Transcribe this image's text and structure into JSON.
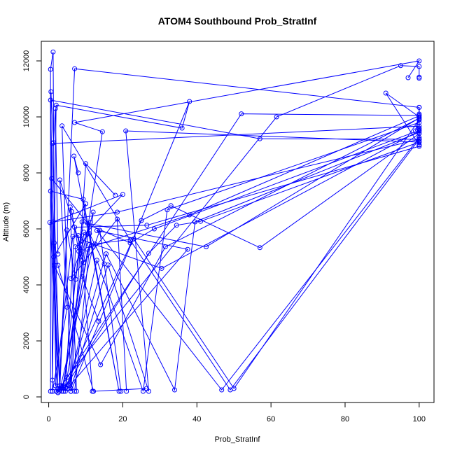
{
  "chart_data": {
    "type": "scatter",
    "title": "ATOM4 Southbound Prob_StratInf",
    "xlabel": "Prob_StratInf",
    "ylabel": "Altitude (m)",
    "xlim": [
      -2,
      104
    ],
    "ylim": [
      -200,
      12700
    ],
    "x_ticks": [
      0,
      20,
      40,
      60,
      80,
      100
    ],
    "y_ticks": [
      0,
      2000,
      4000,
      6000,
      8000,
      10000,
      12000
    ],
    "grid": false,
    "legend": "none",
    "color": "#0000ff",
    "series": [
      {
        "x": [
          0.5,
          0.5,
          1.2,
          1.5,
          2.5,
          12.1,
          26.4
        ],
        "y": [
          200,
          11700,
          12320,
          5500,
          4700,
          200,
          300
        ]
      },
      {
        "x": [
          3,
          7,
          100,
          100
        ],
        "y": [
          300,
          11720,
          10340,
          9000
        ]
      },
      {
        "x": [
          1,
          2,
          36,
          38,
          6,
          10,
          18
        ],
        "y": [
          600,
          10420,
          9600,
          10550,
          200,
          8330,
          7200
        ]
      },
      {
        "x": [
          3.5,
          52,
          100,
          99
        ],
        "y": [
          400,
          10110,
          10050,
          9500
        ]
      },
      {
        "x": [
          4,
          14.5,
          7,
          100,
          97
        ],
        "y": [
          400,
          9470,
          9800,
          12000,
          11400
        ]
      },
      {
        "x": [
          5,
          61.5,
          95,
          100,
          100,
          100
        ],
        "y": [
          700,
          10000,
          11830,
          11800,
          11380,
          11420
        ]
      },
      {
        "x": [
          2,
          0.5,
          57,
          100,
          100,
          100
        ],
        "y": [
          200,
          10600,
          9220,
          9200,
          9900,
          9600
        ]
      },
      {
        "x": [
          3,
          1,
          100,
          100,
          91,
          100
        ],
        "y": [
          300,
          9050,
          9670,
          9000,
          10850,
          10000
        ]
      },
      {
        "x": [
          6,
          3.6,
          22,
          49,
          100
        ],
        "y": [
          200,
          9680,
          5600,
          250,
          9200
        ]
      },
      {
        "x": [
          2.5,
          0.5,
          9.3,
          19,
          6.8,
          8
        ],
        "y": [
          150,
          7350,
          7060,
          200,
          8600,
          8000
        ]
      },
      {
        "x": [
          4,
          25,
          33,
          57,
          100
        ],
        "y": [
          200,
          6300,
          6830,
          5330,
          9400
        ]
      },
      {
        "x": [
          3,
          0.8,
          10.5,
          42.5,
          100
        ],
        "y": [
          400,
          7800,
          6200,
          5360,
          9960
        ]
      },
      {
        "x": [
          2.5,
          1.2,
          20,
          8.5,
          30.5,
          100
        ],
        "y": [
          300,
          6250,
          7230,
          5630,
          4590,
          9500
        ]
      },
      {
        "x": [
          5,
          37.5,
          13,
          46.7,
          100
        ],
        "y": [
          300,
          5270,
          5940,
          250,
          9260
        ]
      },
      {
        "x": [
          4.5,
          27,
          34.5,
          41,
          100
        ],
        "y": [
          350,
          5130,
          6130,
          6270,
          9100
        ]
      },
      {
        "x": [
          3.5,
          11,
          23,
          50,
          100,
          100
        ],
        "y": [
          200,
          5440,
          5640,
          300,
          9900,
          10100
        ]
      },
      {
        "x": [
          6,
          16,
          27,
          20.8,
          100
        ],
        "y": [
          300,
          4710,
          200,
          9500,
          9100
        ]
      },
      {
        "x": [
          5,
          15.5,
          34,
          39.5,
          100
        ],
        "y": [
          300,
          5110,
          250,
          6250,
          9450
        ]
      },
      {
        "x": [
          4,
          9,
          22,
          28.5,
          100
        ],
        "y": [
          350,
          6250,
          5500,
          6000,
          9520
        ]
      },
      {
        "x": [
          3,
          12,
          38,
          100,
          100
        ],
        "y": [
          250,
          5380,
          6500,
          10040,
          10340
        ]
      },
      {
        "x": [
          5.5,
          13,
          25.5,
          32,
          100
        ],
        "y": [
          400,
          4880,
          200,
          6680,
          9800
        ]
      },
      {
        "x": [
          4.5,
          7,
          26.5,
          100,
          100
        ],
        "y": [
          200,
          6060,
          6130,
          8950,
          9150
        ]
      },
      {
        "x": [
          3,
          0.3,
          18.5,
          100,
          100
        ],
        "y": [
          300,
          6230,
          6600,
          9200,
          9560
        ]
      },
      {
        "x": [
          2,
          1.5,
          14,
          31.5,
          100
        ],
        "y": [
          200,
          4700,
          1150,
          5360,
          9950
        ]
      },
      {
        "x": [
          3.8,
          11.2,
          6,
          18.5,
          21
        ],
        "y": [
          300,
          6230,
          4230,
          6350,
          200
        ]
      },
      {
        "x": [
          1,
          5,
          3,
          9,
          11.8
        ],
        "y": [
          200,
          3200,
          7750,
          5200,
          200
        ]
      },
      {
        "x": [
          1.8,
          6.5,
          8,
          9,
          13.5
        ],
        "y": [
          400,
          5730,
          5760,
          4300,
          2700
        ]
      },
      {
        "x": [
          2.8,
          4.9,
          7.3,
          10,
          1.3
        ],
        "y": [
          200,
          5960,
          4200,
          6900,
          5000
        ]
      },
      {
        "x": [
          4.5,
          10.5,
          12.5,
          13.8,
          19.5
        ],
        "y": [
          300,
          5270,
          5460,
          5950,
          200
        ]
      },
      {
        "x": [
          6,
          7.2,
          8.5,
          11,
          15
        ],
        "y": [
          200,
          5360,
          5450,
          5830,
          4750
        ]
      },
      {
        "x": [
          7,
          12,
          8.7,
          9.5,
          10.5
        ],
        "y": [
          200,
          6600,
          5000,
          5880,
          5820
        ]
      },
      {
        "x": [
          7.5,
          5.8,
          6.2,
          8.1,
          9.4
        ],
        "y": [
          200,
          6780,
          6620,
          5200,
          4800
        ]
      },
      {
        "x": [
          1,
          0.6,
          1.3,
          1.8,
          2.5
        ],
        "y": [
          200,
          10900,
          9080,
          10300,
          5100
        ]
      }
    ]
  },
  "plot_area": {
    "border_color": "#000000",
    "background": "#ffffff"
  }
}
